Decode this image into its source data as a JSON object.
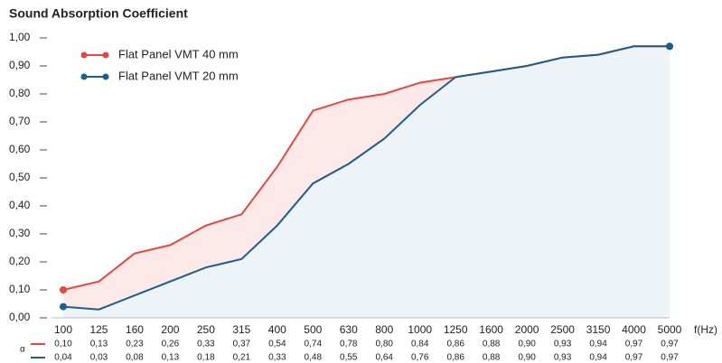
{
  "chart_data": {
    "type": "line",
    "title": "Sound Absorption Coefficient",
    "x_label": "f(Hz)",
    "table_label": "α",
    "categories": [
      "100",
      "125",
      "160",
      "200",
      "250",
      "315",
      "400",
      "500",
      "630",
      "800",
      "1000",
      "1250",
      "1600",
      "2000",
      "2500",
      "3150",
      "4000",
      "5000"
    ],
    "series": [
      {
        "name": "Flat Panel VMT 40 mm",
        "color": "#e8473f",
        "fill": "#fde9e8",
        "values": [
          0.1,
          0.13,
          0.23,
          0.26,
          0.33,
          0.37,
          0.54,
          0.74,
          0.78,
          0.8,
          0.84,
          0.86,
          0.88,
          0.9,
          0.93,
          0.94,
          0.97,
          0.97
        ],
        "value_labels": [
          "0,10",
          "0,13",
          "0,23",
          "0,26",
          "0,33",
          "0,37",
          "0,54",
          "0,74",
          "0,78",
          "0,80",
          "0,84",
          "0,86",
          "0,88",
          "0,90",
          "0,93",
          "0,94",
          "0,97",
          "0,97"
        ]
      },
      {
        "name": "Flat Panel VMT 20 mm",
        "color": "#1b5e8c",
        "fill": "#eef3f7",
        "values": [
          0.04,
          0.03,
          0.08,
          0.13,
          0.18,
          0.21,
          0.33,
          0.48,
          0.55,
          0.64,
          0.76,
          0.86,
          0.88,
          0.9,
          0.93,
          0.94,
          0.97,
          0.97
        ],
        "value_labels": [
          "0,04",
          "0,03",
          "0,08",
          "0,13",
          "0,18",
          "0,21",
          "0,33",
          "0,48",
          "0,55",
          "0,64",
          "0,76",
          "0,86",
          "0,88",
          "0,90",
          "0,93",
          "0,94",
          "0,97",
          "0,97"
        ]
      }
    ],
    "ylim": [
      0,
      1
    ],
    "yticks": [
      {
        "value": 0,
        "label": "0,00"
      },
      {
        "value": 0.1,
        "label": "0,10"
      },
      {
        "value": 0.2,
        "label": "0,20"
      },
      {
        "value": 0.3,
        "label": "0,30"
      },
      {
        "value": 0.4,
        "label": "0,40"
      },
      {
        "value": 0.5,
        "label": "0,50"
      },
      {
        "value": 0.6,
        "label": "0,60"
      },
      {
        "value": 0.7,
        "label": "0,70"
      },
      {
        "value": 0.8,
        "label": "0,80"
      },
      {
        "value": 0.9,
        "label": "0,90"
      },
      {
        "value": 1,
        "label": "1,00"
      }
    ],
    "legend": "top-left"
  }
}
